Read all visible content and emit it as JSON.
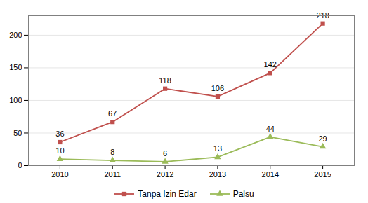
{
  "chart_data": {
    "type": "line",
    "x": [
      2010,
      2011,
      2012,
      2013,
      2014,
      2015
    ],
    "series": [
      {
        "name": "Tanpa Izin Edar",
        "color": "#c0504d",
        "marker": "square",
        "values": [
          36,
          67,
          118,
          106,
          142,
          218
        ]
      },
      {
        "name": "Palsu",
        "color": "#9bbb59",
        "marker": "triangle",
        "values": [
          10,
          8,
          6,
          13,
          44,
          29
        ]
      }
    ],
    "xlim": [
      2009.4,
      2015.6
    ],
    "xticks": [
      2010,
      2011,
      2012,
      2013,
      2014,
      2015
    ],
    "ylim": [
      0,
      230
    ],
    "yticks": [
      0,
      50,
      100,
      150,
      200
    ],
    "grid": true,
    "data_labels": true,
    "legend": "bottom"
  }
}
